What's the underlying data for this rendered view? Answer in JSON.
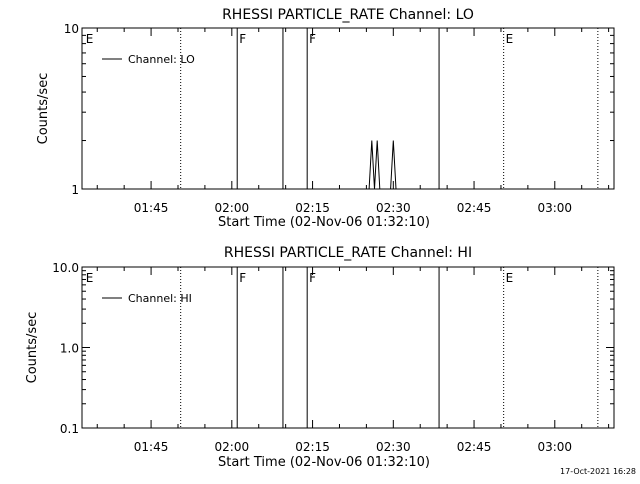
{
  "footer": {
    "timestamp": "17-Oct-2021 16:28"
  },
  "chart_data": [
    {
      "type": "line",
      "title": "RHESSI PARTICLE_RATE Channel: LO",
      "xlabel": "Start Time (02-Nov-06 01:32:10)",
      "ylabel": "Counts/sec",
      "y_scale": "log",
      "ylim": [
        1,
        10
      ],
      "y_ticks": [
        {
          "value": 1,
          "label": "1"
        },
        {
          "value": 10,
          "label": "10"
        }
      ],
      "xlim": [
        "01:32:10",
        "03:11:00"
      ],
      "x_ticks": [
        "01:45",
        "02:00",
        "02:15",
        "02:30",
        "02:45",
        "03:00"
      ],
      "legend": {
        "position": "top-left",
        "entries": [
          "Channel: LO"
        ]
      },
      "annotations": [
        {
          "time": "01:32:30",
          "label": "E",
          "style": "none"
        },
        {
          "time": "01:50:30",
          "label": "",
          "style": "dotted"
        },
        {
          "time": "02:01:00",
          "label": "F",
          "style": "solid"
        },
        {
          "time": "02:09:30",
          "label": "",
          "style": "solid"
        },
        {
          "time": "02:14:00",
          "label": "F",
          "style": "solid"
        },
        {
          "time": "02:38:30",
          "label": "",
          "style": "solid"
        },
        {
          "time": "02:50:30",
          "label": "E",
          "style": "dotted"
        },
        {
          "time": "03:08:00",
          "label": "",
          "style": "dotted"
        }
      ],
      "series": [
        {
          "name": "Channel: LO",
          "segments": [
            [
              [
                "02:25:30",
                1
              ],
              [
                "02:26:00",
                2
              ],
              [
                "02:26:30",
                1
              ]
            ],
            [
              [
                "02:26:30",
                1
              ],
              [
                "02:27:00",
                2
              ],
              [
                "02:27:30",
                1
              ]
            ],
            [
              [
                "02:29:30",
                1
              ],
              [
                "02:30:00",
                2
              ],
              [
                "02:30:30",
                1
              ]
            ]
          ]
        }
      ]
    },
    {
      "type": "line",
      "title": "RHESSI PARTICLE_RATE Channel: HI",
      "xlabel": "Start Time (02-Nov-06 01:32:10)",
      "ylabel": "Counts/sec",
      "y_scale": "log",
      "ylim": [
        0.1,
        10
      ],
      "y_ticks": [
        {
          "value": 0.1,
          "label": "0.1"
        },
        {
          "value": 1,
          "label": "1.0"
        },
        {
          "value": 10,
          "label": "10.0"
        }
      ],
      "xlim": [
        "01:32:10",
        "03:11:00"
      ],
      "x_ticks": [
        "01:45",
        "02:00",
        "02:15",
        "02:30",
        "02:45",
        "03:00"
      ],
      "legend": {
        "position": "top-left",
        "entries": [
          "Channel: HI"
        ]
      },
      "annotations": [
        {
          "time": "01:32:30",
          "label": "E",
          "style": "none"
        },
        {
          "time": "01:50:30",
          "label": "",
          "style": "dotted"
        },
        {
          "time": "02:01:00",
          "label": "F",
          "style": "solid"
        },
        {
          "time": "02:09:30",
          "label": "",
          "style": "solid"
        },
        {
          "time": "02:14:00",
          "label": "F",
          "style": "solid"
        },
        {
          "time": "02:38:30",
          "label": "",
          "style": "solid"
        },
        {
          "time": "02:50:30",
          "label": "E",
          "style": "dotted"
        },
        {
          "time": "03:08:00",
          "label": "",
          "style": "dotted"
        }
      ],
      "series": [
        {
          "name": "Channel: HI",
          "segments": []
        }
      ]
    }
  ]
}
